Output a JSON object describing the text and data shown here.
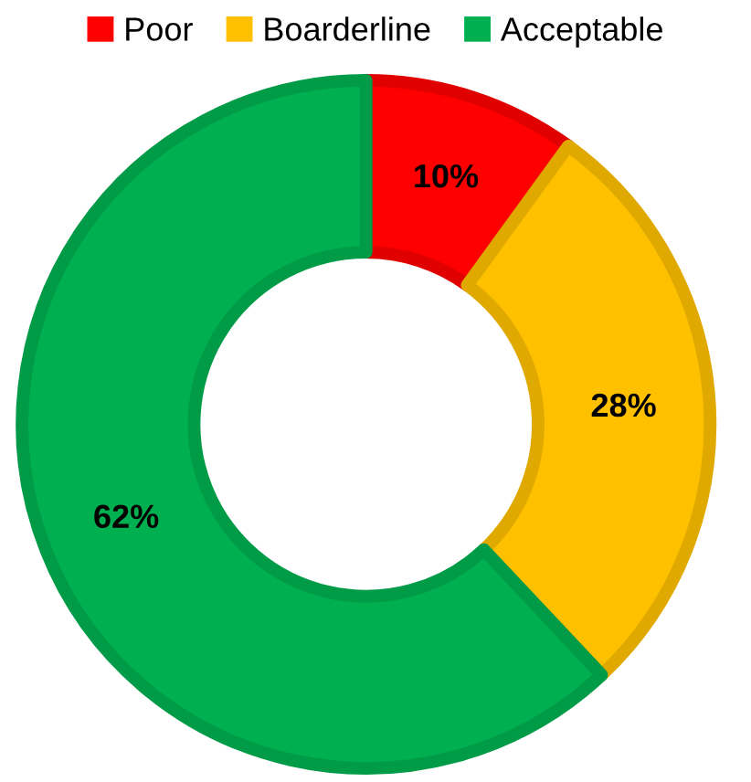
{
  "chart_data": {
    "type": "donut",
    "categories": [
      "Poor",
      "Boarderline",
      "Acceptable"
    ],
    "values": [
      10,
      28,
      62
    ],
    "colors": [
      "#ff0000",
      "#ffc000",
      "#00b050"
    ],
    "value_labels": [
      "10%",
      "28%",
      "62%"
    ],
    "legend": "top"
  }
}
